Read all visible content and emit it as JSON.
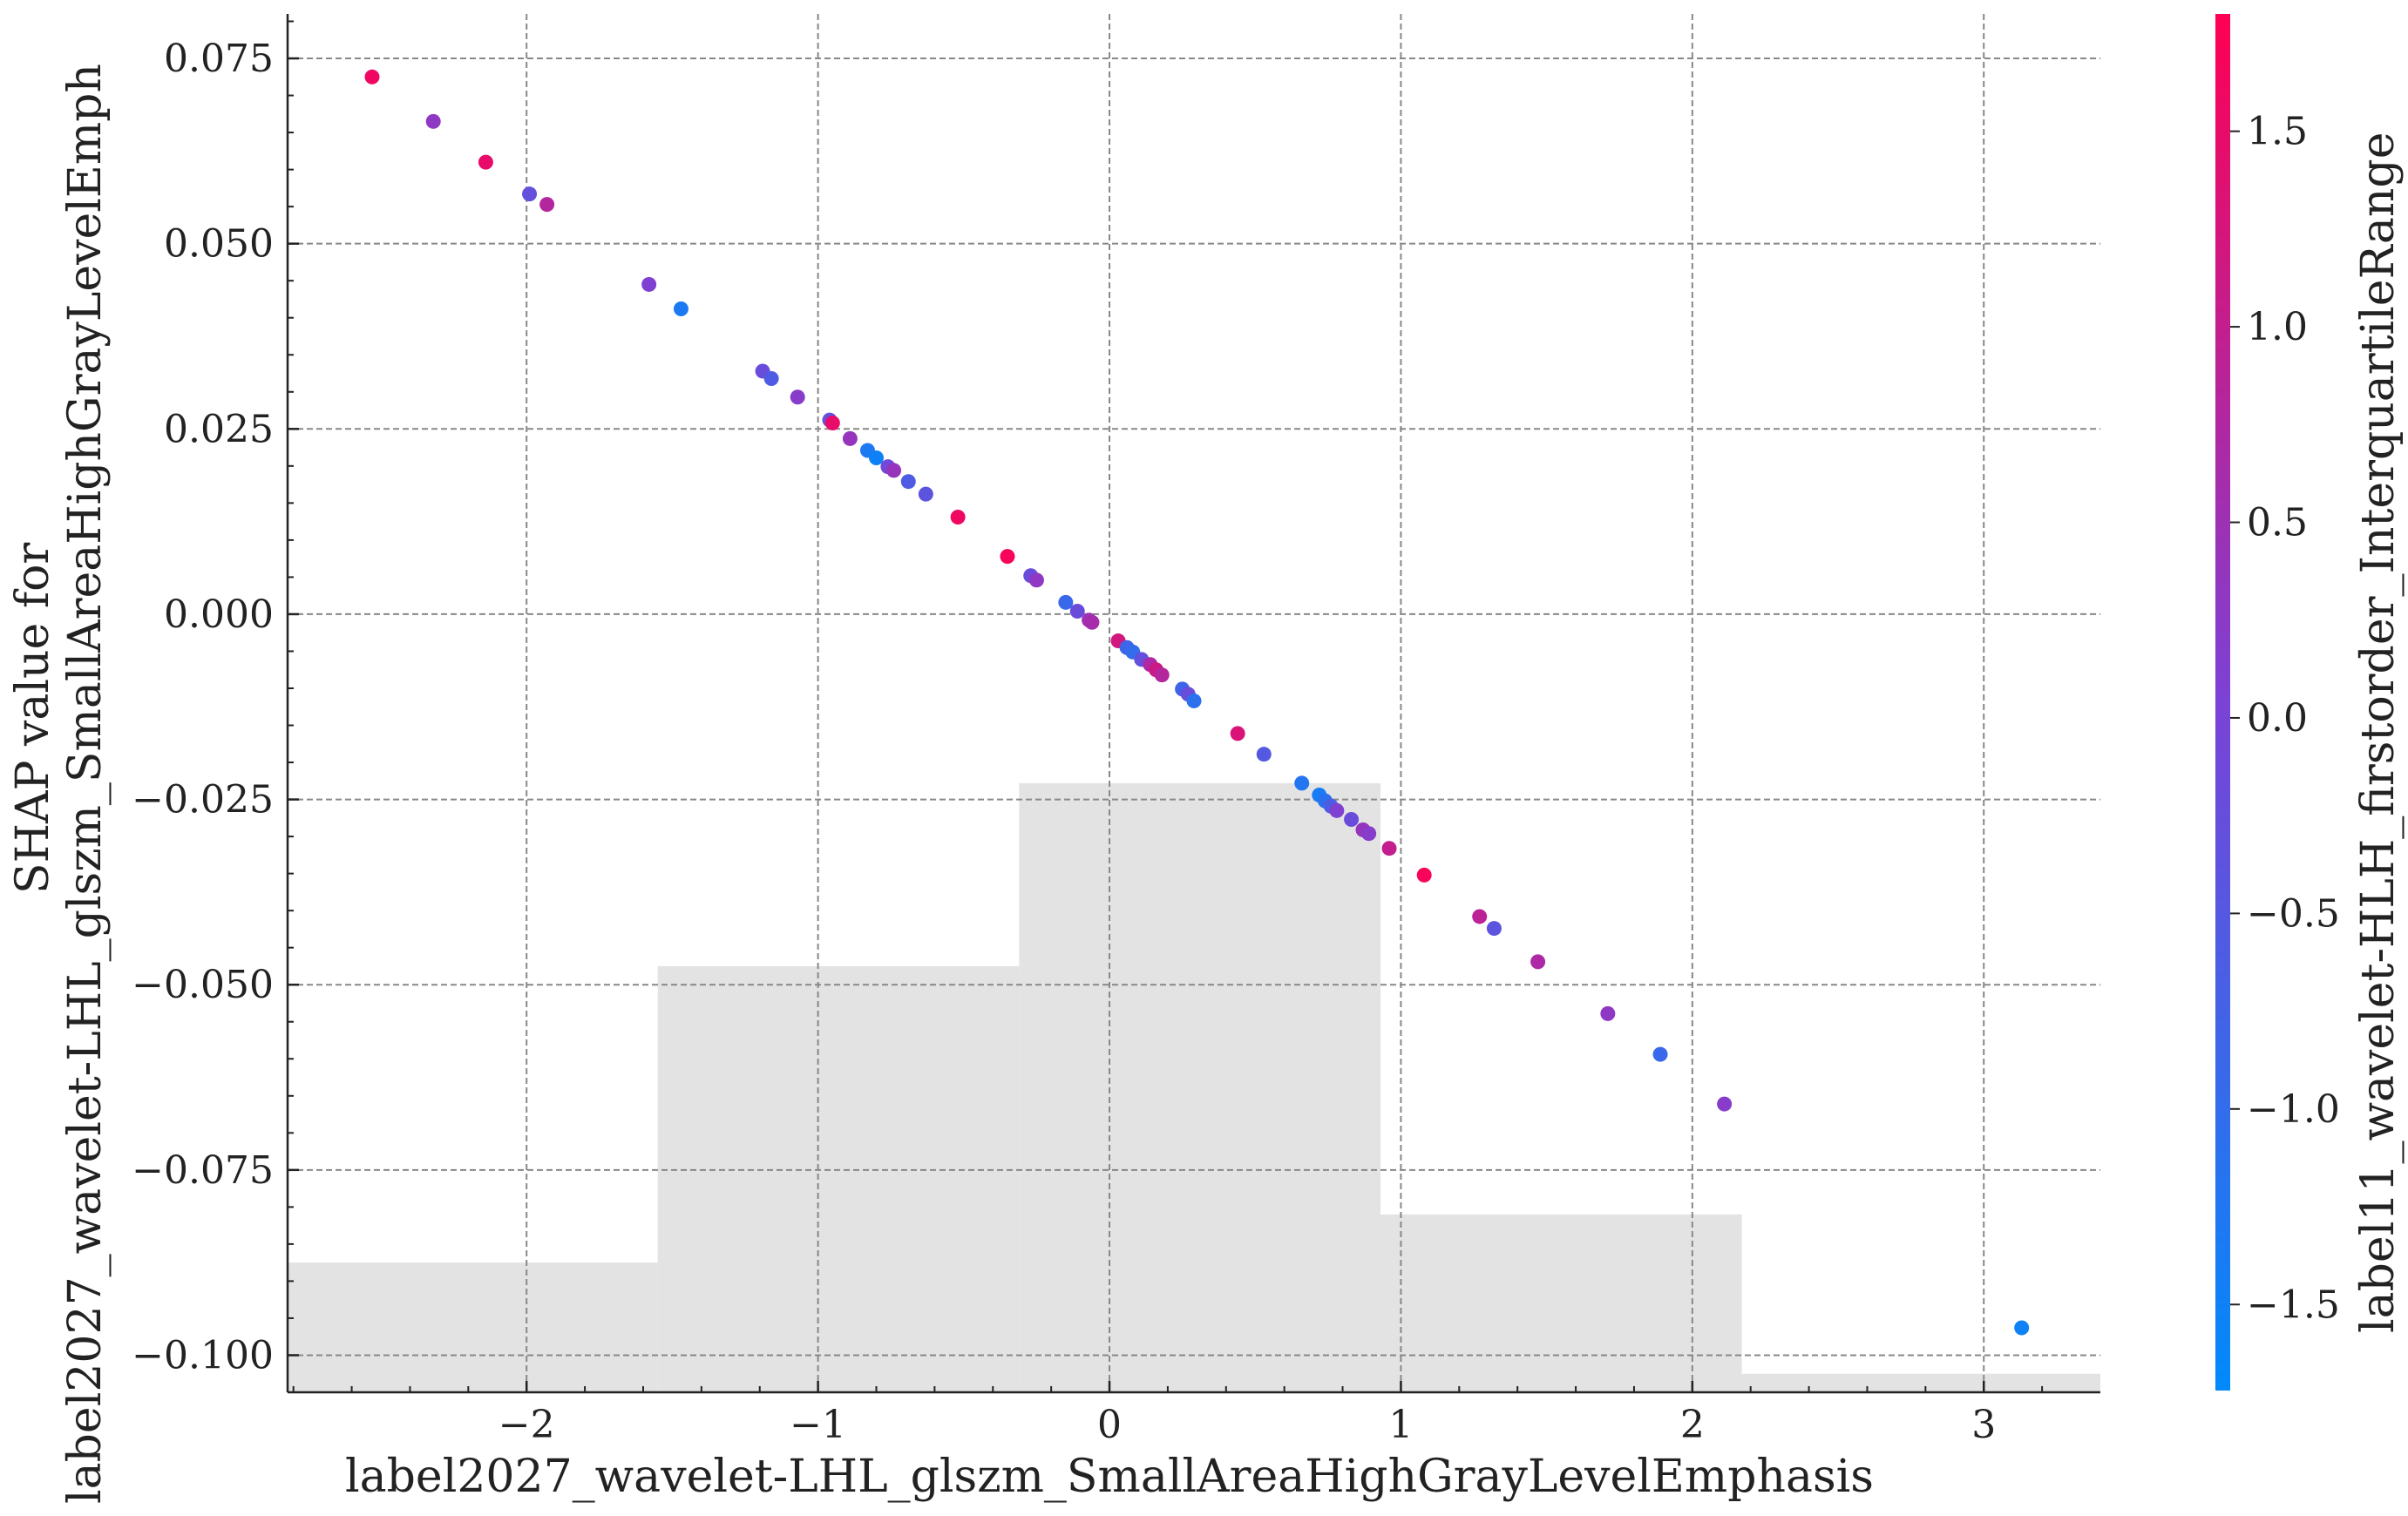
{
  "chart_data": {
    "type": "scatter",
    "title": "",
    "xlabel": "label2027_wavelet-LHL_glszm_SmallAreaHighGrayLevelEmphasis",
    "ylabel_lines": [
      "SHAP value for",
      "label2027_wavelet-LHL_glszm_SmallAreaHighGrayLevelEmph"
    ],
    "colorbar_label": "label11_wavelet-HLH_firstorder_InterquartileRange",
    "xlim": [
      -2.82,
      3.4
    ],
    "ylim": [
      -0.105,
      0.081
    ],
    "x_ticks": [
      -2,
      -1,
      0,
      1,
      2,
      3
    ],
    "x_tick_labels": [
      "−2",
      "−1",
      "0",
      "1",
      "2",
      "3"
    ],
    "y_ticks": [
      0.075,
      0.05,
      0.025,
      0.0,
      -0.025,
      -0.05,
      -0.075,
      -0.1
    ],
    "y_tick_labels": [
      "0.075",
      "0.050",
      "0.025",
      "0.000",
      "−0.025",
      "−0.050",
      "−0.075",
      "−0.100"
    ],
    "grid": true,
    "colorbar": {
      "range": [
        -1.72,
        1.8
      ],
      "ticks": [
        1.5,
        1.0,
        0.5,
        0.0,
        -0.5,
        -1.0,
        -1.5
      ],
      "tick_labels": [
        "1.5",
        "1.0",
        "0.5",
        "0.0",
        "−0.5",
        "−1.0",
        "−1.5"
      ],
      "color_low": "#008afb",
      "color_mid": "#7b42d6",
      "color_high": "#ff0052"
    },
    "histogram": {
      "color": "#e3e3e3",
      "bins": [
        {
          "x0": -2.82,
          "x1": -1.55,
          "y_top": -0.0875
        },
        {
          "x0": -1.55,
          "x1": -0.31,
          "y_top": -0.0475
        },
        {
          "x0": -0.31,
          "x1": 0.93,
          "y_top": -0.0228
        },
        {
          "x0": 0.93,
          "x1": 2.17,
          "y_top": -0.081
        },
        {
          "x0": 2.17,
          "x1": 3.4,
          "y_top": -0.1025
        }
      ]
    },
    "points": [
      {
        "x": -2.53,
        "y": 0.0725,
        "c": 1.6
      },
      {
        "x": -2.32,
        "y": 0.0665,
        "c": 0.3
      },
      {
        "x": -2.14,
        "y": 0.061,
        "c": 1.5
      },
      {
        "x": -1.99,
        "y": 0.0567,
        "c": -0.3
      },
      {
        "x": -1.93,
        "y": 0.0553,
        "c": 0.8
      },
      {
        "x": -1.58,
        "y": 0.0445,
        "c": 0.1
      },
      {
        "x": -1.47,
        "y": 0.0412,
        "c": -1.3
      },
      {
        "x": -1.19,
        "y": 0.0328,
        "c": -0.2
      },
      {
        "x": -1.16,
        "y": 0.0318,
        "c": -0.6
      },
      {
        "x": -1.07,
        "y": 0.0293,
        "c": 0.2
      },
      {
        "x": -0.96,
        "y": 0.0262,
        "c": -0.3
      },
      {
        "x": -0.95,
        "y": 0.0258,
        "c": 1.5
      },
      {
        "x": -0.89,
        "y": 0.0237,
        "c": 0.4
      },
      {
        "x": -0.83,
        "y": 0.0221,
        "c": -1.3
      },
      {
        "x": -0.8,
        "y": 0.0211,
        "c": -1.5
      },
      {
        "x": -0.76,
        "y": 0.0199,
        "c": -0.1
      },
      {
        "x": -0.74,
        "y": 0.0194,
        "c": 0.4
      },
      {
        "x": -0.69,
        "y": 0.0179,
        "c": -0.6
      },
      {
        "x": -0.63,
        "y": 0.0162,
        "c": -0.4
      },
      {
        "x": -0.52,
        "y": 0.0131,
        "c": 1.6
      },
      {
        "x": -0.35,
        "y": 0.0078,
        "c": 1.7
      },
      {
        "x": -0.27,
        "y": 0.0052,
        "c": -0.2
      },
      {
        "x": -0.25,
        "y": 0.0046,
        "c": 0.3
      },
      {
        "x": -0.15,
        "y": 0.0016,
        "c": -0.9
      },
      {
        "x": -0.11,
        "y": 0.0004,
        "c": -0.2
      },
      {
        "x": -0.07,
        "y": -0.0008,
        "c": 0.5
      },
      {
        "x": -0.06,
        "y": -0.0011,
        "c": 0.6
      },
      {
        "x": 0.03,
        "y": -0.0036,
        "c": 1.2
      },
      {
        "x": 0.06,
        "y": -0.0045,
        "c": -0.8
      },
      {
        "x": 0.08,
        "y": -0.0051,
        "c": -1.0
      },
      {
        "x": 0.11,
        "y": -0.0061,
        "c": -0.3
      },
      {
        "x": 0.14,
        "y": -0.0068,
        "c": 0.7
      },
      {
        "x": 0.16,
        "y": -0.0075,
        "c": 1.1
      },
      {
        "x": 0.18,
        "y": -0.0082,
        "c": 0.8
      },
      {
        "x": 0.25,
        "y": -0.0101,
        "c": -0.8
      },
      {
        "x": 0.27,
        "y": -0.0108,
        "c": -0.2
      },
      {
        "x": 0.29,
        "y": -0.0117,
        "c": -1.1
      },
      {
        "x": 0.44,
        "y": -0.0161,
        "c": 1.3
      },
      {
        "x": 0.53,
        "y": -0.0189,
        "c": -0.5
      },
      {
        "x": 0.66,
        "y": -0.0228,
        "c": -1.2
      },
      {
        "x": 0.72,
        "y": -0.0244,
        "c": -1.4
      },
      {
        "x": 0.74,
        "y": -0.0252,
        "c": -1.1
      },
      {
        "x": 0.76,
        "y": -0.0259,
        "c": -0.6
      },
      {
        "x": 0.78,
        "y": -0.0265,
        "c": 0.1
      },
      {
        "x": 0.83,
        "y": -0.0277,
        "c": -0.2
      },
      {
        "x": 0.87,
        "y": -0.0291,
        "c": 0.4
      },
      {
        "x": 0.89,
        "y": -0.0296,
        "c": 0.2
      },
      {
        "x": 0.96,
        "y": -0.0316,
        "c": 1.0
      },
      {
        "x": 1.08,
        "y": -0.0352,
        "c": 1.7
      },
      {
        "x": 1.27,
        "y": -0.0408,
        "c": 0.9
      },
      {
        "x": 1.32,
        "y": -0.0424,
        "c": -0.4
      },
      {
        "x": 1.47,
        "y": -0.0469,
        "c": 0.7
      },
      {
        "x": 1.71,
        "y": -0.0539,
        "c": 0.3
      },
      {
        "x": 1.89,
        "y": -0.0594,
        "c": -0.9
      },
      {
        "x": 2.11,
        "y": -0.0661,
        "c": 0.2
      },
      {
        "x": 3.13,
        "y": -0.0963,
        "c": -1.5
      }
    ]
  }
}
